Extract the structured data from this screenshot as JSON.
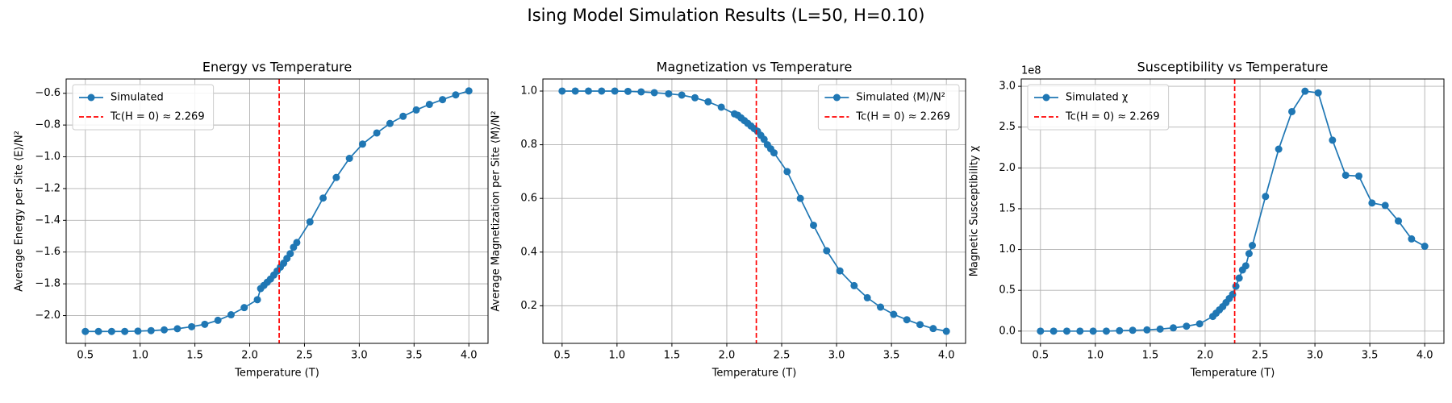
{
  "title": "Ising Model Simulation Results (L=50, H=0.10)",
  "chart_data": [
    {
      "type": "line",
      "title": "Energy vs Temperature",
      "x_label": "Temperature (T)",
      "y_label": "Average Energy per Site ⟨E⟩/N²",
      "x": [
        0.5,
        0.62,
        0.74,
        0.86,
        0.98,
        1.1,
        1.22,
        1.34,
        1.47,
        1.59,
        1.71,
        1.83,
        1.95,
        2.07,
        2.1,
        2.13,
        2.16,
        2.19,
        2.22,
        2.25,
        2.28,
        2.31,
        2.34,
        2.37,
        2.4,
        2.43,
        2.55,
        2.67,
        2.79,
        2.91,
        3.03,
        3.16,
        3.28,
        3.4,
        3.52,
        3.64,
        3.76,
        3.88,
        4.0
      ],
      "series": [
        {
          "name": "Simulated",
          "color": "#1f77b4",
          "values": [
            -2.1,
            -2.1,
            -2.1,
            -2.1,
            -2.098,
            -2.095,
            -2.09,
            -2.083,
            -2.07,
            -2.055,
            -2.03,
            -1.995,
            -1.95,
            -1.9,
            -1.83,
            -1.81,
            -1.79,
            -1.77,
            -1.745,
            -1.72,
            -1.695,
            -1.67,
            -1.64,
            -1.61,
            -1.57,
            -1.54,
            -1.41,
            -1.26,
            -1.13,
            -1.01,
            -0.92,
            -0.85,
            -0.79,
            -0.745,
            -0.705,
            -0.67,
            -0.64,
            -0.61,
            -0.585
          ]
        }
      ],
      "vline": {
        "value": 2.269,
        "label": "Tc(H = 0) ≈ 2.269",
        "color": "#ff0000"
      },
      "xlim": [
        0.325,
        4.175
      ],
      "xticks": [
        0.5,
        {
          "value": 1,
          "label": "1.0"
        },
        1.5,
        {
          "value": 2,
          "label": "2.0"
        },
        2.5,
        {
          "value": 3,
          "label": "3.0"
        },
        3.5,
        {
          "value": 4,
          "label": "4.0"
        }
      ],
      "ylim": [
        -2.175,
        -0.51
      ],
      "yticks": [
        {
          "value": -2,
          "label": "−2.0"
        },
        {
          "value": -1.8,
          "label": "−1.8"
        },
        {
          "value": -1.6,
          "label": "−1.6"
        },
        {
          "value": -1.4,
          "label": "−1.4"
        },
        {
          "value": -1.2,
          "label": "−1.2"
        },
        {
          "value": -1,
          "label": "−1.0"
        },
        {
          "value": -0.8,
          "label": "−0.8"
        },
        {
          "value": -0.6,
          "label": "−0.6"
        }
      ],
      "grid": true,
      "legend": "upper left"
    },
    {
      "type": "line",
      "title": "Magnetization vs Temperature",
      "x_label": "Temperature (T)",
      "y_label": "Average Magnetization per Site ⟨M⟩/N²",
      "x": [
        0.5,
        0.62,
        0.74,
        0.86,
        0.98,
        1.1,
        1.22,
        1.34,
        1.47,
        1.59,
        1.71,
        1.83,
        1.95,
        2.07,
        2.1,
        2.13,
        2.16,
        2.19,
        2.22,
        2.25,
        2.28,
        2.31,
        2.34,
        2.37,
        2.4,
        2.43,
        2.55,
        2.67,
        2.79,
        2.91,
        3.03,
        3.16,
        3.28,
        3.4,
        3.52,
        3.64,
        3.76,
        3.88,
        4.0
      ],
      "series": [
        {
          "name": "Simulated ⟨M⟩/N²",
          "color": "#1f77b4",
          "values": [
            1,
            1,
            1,
            1,
            1,
            0.999,
            0.997,
            0.994,
            0.99,
            0.985,
            0.975,
            0.96,
            0.94,
            0.915,
            0.91,
            0.9,
            0.89,
            0.88,
            0.87,
            0.86,
            0.85,
            0.835,
            0.82,
            0.8,
            0.785,
            0.77,
            0.7,
            0.6,
            0.5,
            0.405,
            0.33,
            0.275,
            0.23,
            0.195,
            0.168,
            0.148,
            0.13,
            0.115,
            0.105
          ]
        }
      ],
      "vline": {
        "value": 2.269,
        "label": "Tc(H = 0) ≈ 2.269",
        "color": "#ff0000"
      },
      "xlim": [
        0.325,
        4.175
      ],
      "xticks": [
        0.5,
        {
          "value": 1,
          "label": "1.0"
        },
        1.5,
        {
          "value": 2,
          "label": "2.0"
        },
        2.5,
        {
          "value": 3,
          "label": "3.0"
        },
        3.5,
        {
          "value": 4,
          "label": "4.0"
        }
      ],
      "ylim": [
        0.06,
        1.045
      ],
      "yticks": [
        0.2,
        0.4,
        0.6,
        0.8,
        {
          "value": 1,
          "label": "1.0"
        }
      ],
      "grid": true,
      "legend": "upper right"
    },
    {
      "type": "line",
      "title": "Susceptibility vs Temperature",
      "x_label": "Temperature (T)",
      "y_label": "Magnetic Susceptibility χ",
      "offset_text": "1e8",
      "x": [
        0.5,
        0.62,
        0.74,
        0.86,
        0.98,
        1.1,
        1.22,
        1.34,
        1.47,
        1.59,
        1.71,
        1.83,
        1.95,
        2.07,
        2.1,
        2.13,
        2.16,
        2.19,
        2.22,
        2.25,
        2.28,
        2.31,
        2.34,
        2.37,
        2.4,
        2.43,
        2.55,
        2.67,
        2.79,
        2.91,
        3.03,
        3.16,
        3.28,
        3.4,
        3.52,
        3.64,
        3.76,
        3.88,
        4.0
      ],
      "series": [
        {
          "name": "Simulated χ",
          "color": "#1f77b4",
          "values": [
            0,
            0,
            0,
            0,
            0,
            0,
            0.005,
            0.01,
            0.015,
            0.025,
            0.04,
            0.06,
            0.09,
            0.18,
            0.22,
            0.26,
            0.3,
            0.35,
            0.4,
            0.45,
            0.55,
            0.65,
            0.75,
            0.8,
            0.95,
            1.05,
            1.65,
            2.23,
            2.69,
            2.94,
            2.92,
            2.34,
            1.91,
            1.9,
            1.57,
            1.54,
            1.35,
            1.13,
            1.04
          ]
        }
      ],
      "vline": {
        "value": 2.269,
        "label": "Tc(H = 0) ≈ 2.269",
        "color": "#ff0000"
      },
      "xlim": [
        0.325,
        4.175
      ],
      "xticks": [
        0.5,
        {
          "value": 1,
          "label": "1.0"
        },
        1.5,
        {
          "value": 2,
          "label": "2.0"
        },
        2.5,
        {
          "value": 3,
          "label": "3.0"
        },
        3.5,
        {
          "value": 4,
          "label": "4.0"
        }
      ],
      "ylim": [
        -0.15,
        3.09
      ],
      "yticks": [
        {
          "value": 0,
          "label": "0.0"
        },
        {
          "value": 0.5,
          "label": "0.5"
        },
        {
          "value": 1,
          "label": "1.0"
        },
        {
          "value": 1.5,
          "label": "1.5"
        },
        {
          "value": 2,
          "label": "2.0"
        },
        {
          "value": 2.5,
          "label": "2.5"
        },
        {
          "value": 3,
          "label": "3.0"
        }
      ],
      "grid": true,
      "legend": "upper left"
    }
  ]
}
